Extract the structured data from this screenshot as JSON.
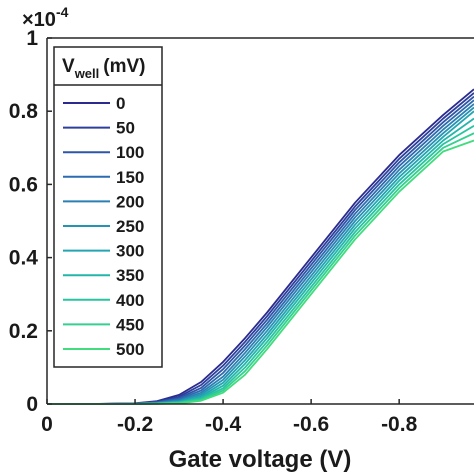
{
  "chart_data": {
    "type": "line",
    "title": "",
    "xlabel": "Gate voltage (V)",
    "ylabel": "",
    "xlim": [
      0,
      -0.97
    ],
    "ylim": [
      0,
      1
    ],
    "y_multiplier": {
      "base": "×10",
      "exponent": "-4"
    },
    "x_ticks": [
      {
        "value": 0,
        "label": "0"
      },
      {
        "value": -0.2,
        "label": "-0.2"
      },
      {
        "value": -0.4,
        "label": "-0.4"
      },
      {
        "value": -0.6,
        "label": "-0.6"
      },
      {
        "value": -0.8,
        "label": "-0.8"
      }
    ],
    "y_ticks": [
      {
        "value": 0,
        "label": "0"
      },
      {
        "value": 0.2,
        "label": "0.2"
      },
      {
        "value": 0.4,
        "label": "0.4"
      },
      {
        "value": 0.6,
        "label": "0.6"
      },
      {
        "value": 0.8,
        "label": "0.8"
      },
      {
        "value": 1,
        "label": "1"
      }
    ],
    "legend": {
      "title_main": "V",
      "title_sub": "well",
      "title_unit": "(mV)",
      "placement": "top-left"
    },
    "x": [
      0,
      -0.1,
      -0.2,
      -0.25,
      -0.3,
      -0.35,
      -0.4,
      -0.45,
      -0.5,
      -0.6,
      -0.7,
      -0.8,
      -0.9,
      -0.97
    ],
    "series": [
      {
        "name": "0",
        "color": "#2b2b8f",
        "values": [
          0,
          0,
          0.002,
          0.008,
          0.025,
          0.06,
          0.115,
          0.18,
          0.25,
          0.4,
          0.55,
          0.68,
          0.79,
          0.86
        ]
      },
      {
        "name": "50",
        "color": "#2c3f9c",
        "values": [
          0,
          0,
          0.0015,
          0.006,
          0.02,
          0.052,
          0.105,
          0.17,
          0.24,
          0.39,
          0.54,
          0.67,
          0.78,
          0.85
        ]
      },
      {
        "name": "100",
        "color": "#2f55a8",
        "values": [
          0,
          0,
          0.001,
          0.005,
          0.016,
          0.044,
          0.095,
          0.16,
          0.23,
          0.38,
          0.53,
          0.66,
          0.77,
          0.84
        ]
      },
      {
        "name": "150",
        "color": "#2c6baf",
        "values": [
          0,
          0,
          0.0008,
          0.004,
          0.013,
          0.037,
          0.085,
          0.15,
          0.22,
          0.37,
          0.52,
          0.65,
          0.76,
          0.83
        ]
      },
      {
        "name": "200",
        "color": "#2a7fb3",
        "values": [
          0,
          0,
          0.0006,
          0.003,
          0.01,
          0.031,
          0.075,
          0.14,
          0.21,
          0.36,
          0.51,
          0.64,
          0.75,
          0.82
        ]
      },
      {
        "name": "250",
        "color": "#2793b4",
        "values": [
          0,
          0,
          0.0005,
          0.0025,
          0.008,
          0.026,
          0.066,
          0.13,
          0.2,
          0.35,
          0.5,
          0.63,
          0.74,
          0.81
        ]
      },
      {
        "name": "300",
        "color": "#23a5b2",
        "values": [
          0,
          0,
          0.0004,
          0.002,
          0.006,
          0.021,
          0.058,
          0.12,
          0.19,
          0.34,
          0.49,
          0.62,
          0.73,
          0.8
        ]
      },
      {
        "name": "350",
        "color": "#22b6ab",
        "values": [
          0,
          0,
          0.0003,
          0.0015,
          0.005,
          0.017,
          0.05,
          0.11,
          0.18,
          0.33,
          0.48,
          0.61,
          0.72,
          0.78
        ]
      },
      {
        "name": "400",
        "color": "#28c49f",
        "values": [
          0,
          0,
          0.0002,
          0.001,
          0.004,
          0.014,
          0.043,
          0.1,
          0.17,
          0.32,
          0.47,
          0.6,
          0.71,
          0.76
        ]
      },
      {
        "name": "450",
        "color": "#33d08f",
        "values": [
          0,
          0,
          0.0002,
          0.0008,
          0.003,
          0.011,
          0.037,
          0.09,
          0.16,
          0.31,
          0.46,
          0.59,
          0.7,
          0.74
        ]
      },
      {
        "name": "500",
        "color": "#41dc7e",
        "values": [
          0,
          0,
          0.0001,
          0.0006,
          0.002,
          0.009,
          0.031,
          0.08,
          0.15,
          0.3,
          0.45,
          0.58,
          0.69,
          0.72
        ]
      }
    ]
  }
}
